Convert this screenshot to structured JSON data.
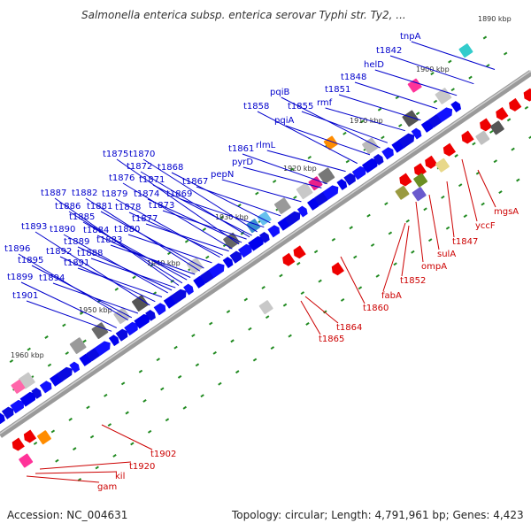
{
  "title": "Salmonella enterica subsp. enterica serovar Typhi str. Ty2, ...",
  "footer": {
    "accession": "Accession: NC_004631",
    "summary": "Topology: circular; Length: 4,791,961 bp; Genes: 4,423"
  },
  "kbp_labels": [
    "1890 kbp",
    "1900 kbp",
    "1910 kbp",
    "1920 kbp",
    "1930 kbp",
    "1940 kbp",
    "1950 kbp",
    "1960 kbp"
  ],
  "forward_gene_labels": [
    "tnpA",
    "t1842",
    "helD",
    "t1848",
    "t1851",
    "rmf",
    "pqiB",
    "t1855",
    "pqiA",
    "t1858",
    "rlmL",
    "t1861",
    "pyrD",
    "pepN",
    "t1867",
    "t1868",
    "t1869",
    "t1870",
    "t1871",
    "t1872",
    "t1873",
    "t1874",
    "t1875",
    "t1876",
    "t1877",
    "t1878",
    "t1879",
    "t1880",
    "t1881",
    "t1882",
    "t1883",
    "t1884",
    "t1885",
    "t1886",
    "t1887",
    "t1888",
    "t1889",
    "t1890",
    "t1891",
    "t1892",
    "t1893",
    "t1894",
    "t1895",
    "t1896",
    "t1899",
    "t1901"
  ],
  "reverse_gene_labels": [
    "mgsA",
    "yccF",
    "t1847",
    "sulA",
    "ompA",
    "t1852",
    "fabA",
    "t1860",
    "t1864",
    "t1865",
    "t1902",
    "t1920",
    "kil",
    "gam"
  ],
  "colors": {
    "forward": "#0000ee",
    "reverse": "#dd0000",
    "backbone": "#808080",
    "tick": "#228b22",
    "label_forward": "#0000cc",
    "label_reverse": "#cc0000"
  }
}
